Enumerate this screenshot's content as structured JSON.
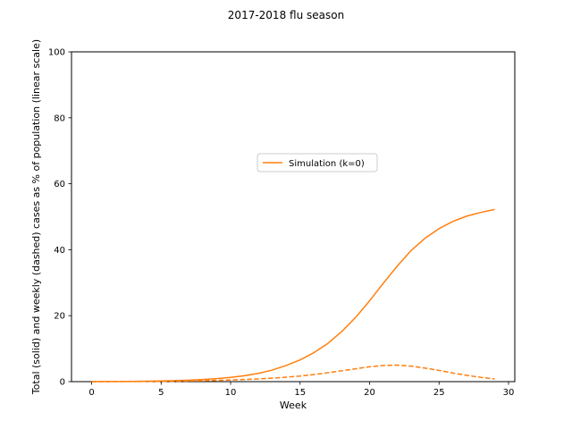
{
  "chart_data": {
    "type": "line",
    "title": "2017-2018 flu season",
    "xlabel": "Week",
    "ylabel": "Total (solid) and weekly (dashed) cases as % of population (linear scale)",
    "xlim": [
      -1.45,
      30.45
    ],
    "ylim": [
      0,
      100
    ],
    "xticks": [
      0,
      5,
      10,
      15,
      20,
      25,
      30
    ],
    "yticks": [
      0,
      20,
      40,
      60,
      80,
      100
    ],
    "grid": false,
    "legend_position": "center",
    "series": [
      {
        "name": "Simulation (k=0)",
        "style": "solid",
        "color": "#ff7f0e",
        "x": [
          0,
          1,
          2,
          3,
          4,
          5,
          6,
          7,
          8,
          9,
          10,
          11,
          12,
          13,
          14,
          15,
          16,
          17,
          18,
          19,
          20,
          21,
          22,
          23,
          24,
          25,
          26,
          27,
          28,
          29
        ],
        "values": [
          0.0,
          0.02,
          0.04,
          0.08,
          0.13,
          0.2,
          0.3,
          0.45,
          0.65,
          0.9,
          1.3,
          1.8,
          2.5,
          3.5,
          4.9,
          6.6,
          8.8,
          11.6,
          15.2,
          19.5,
          24.5,
          29.9,
          35.1,
          39.8,
          43.5,
          46.4,
          48.6,
          50.2,
          51.3,
          52.2
        ]
      },
      {
        "name": "",
        "style": "dashed",
        "color": "#ff7f0e",
        "x": [
          0,
          1,
          2,
          3,
          4,
          5,
          6,
          7,
          8,
          9,
          10,
          11,
          12,
          13,
          14,
          15,
          16,
          17,
          18,
          19,
          20,
          21,
          22,
          23,
          24,
          25,
          26,
          27,
          28,
          29
        ],
        "values": [
          0.0,
          0.01,
          0.02,
          0.04,
          0.06,
          0.08,
          0.12,
          0.18,
          0.27,
          0.38,
          0.5,
          0.65,
          0.82,
          1.05,
          1.35,
          1.7,
          2.15,
          2.7,
          3.3,
          3.9,
          4.5,
          4.9,
          5.0,
          4.7,
          4.1,
          3.4,
          2.6,
          1.9,
          1.3,
          0.8
        ]
      }
    ]
  }
}
